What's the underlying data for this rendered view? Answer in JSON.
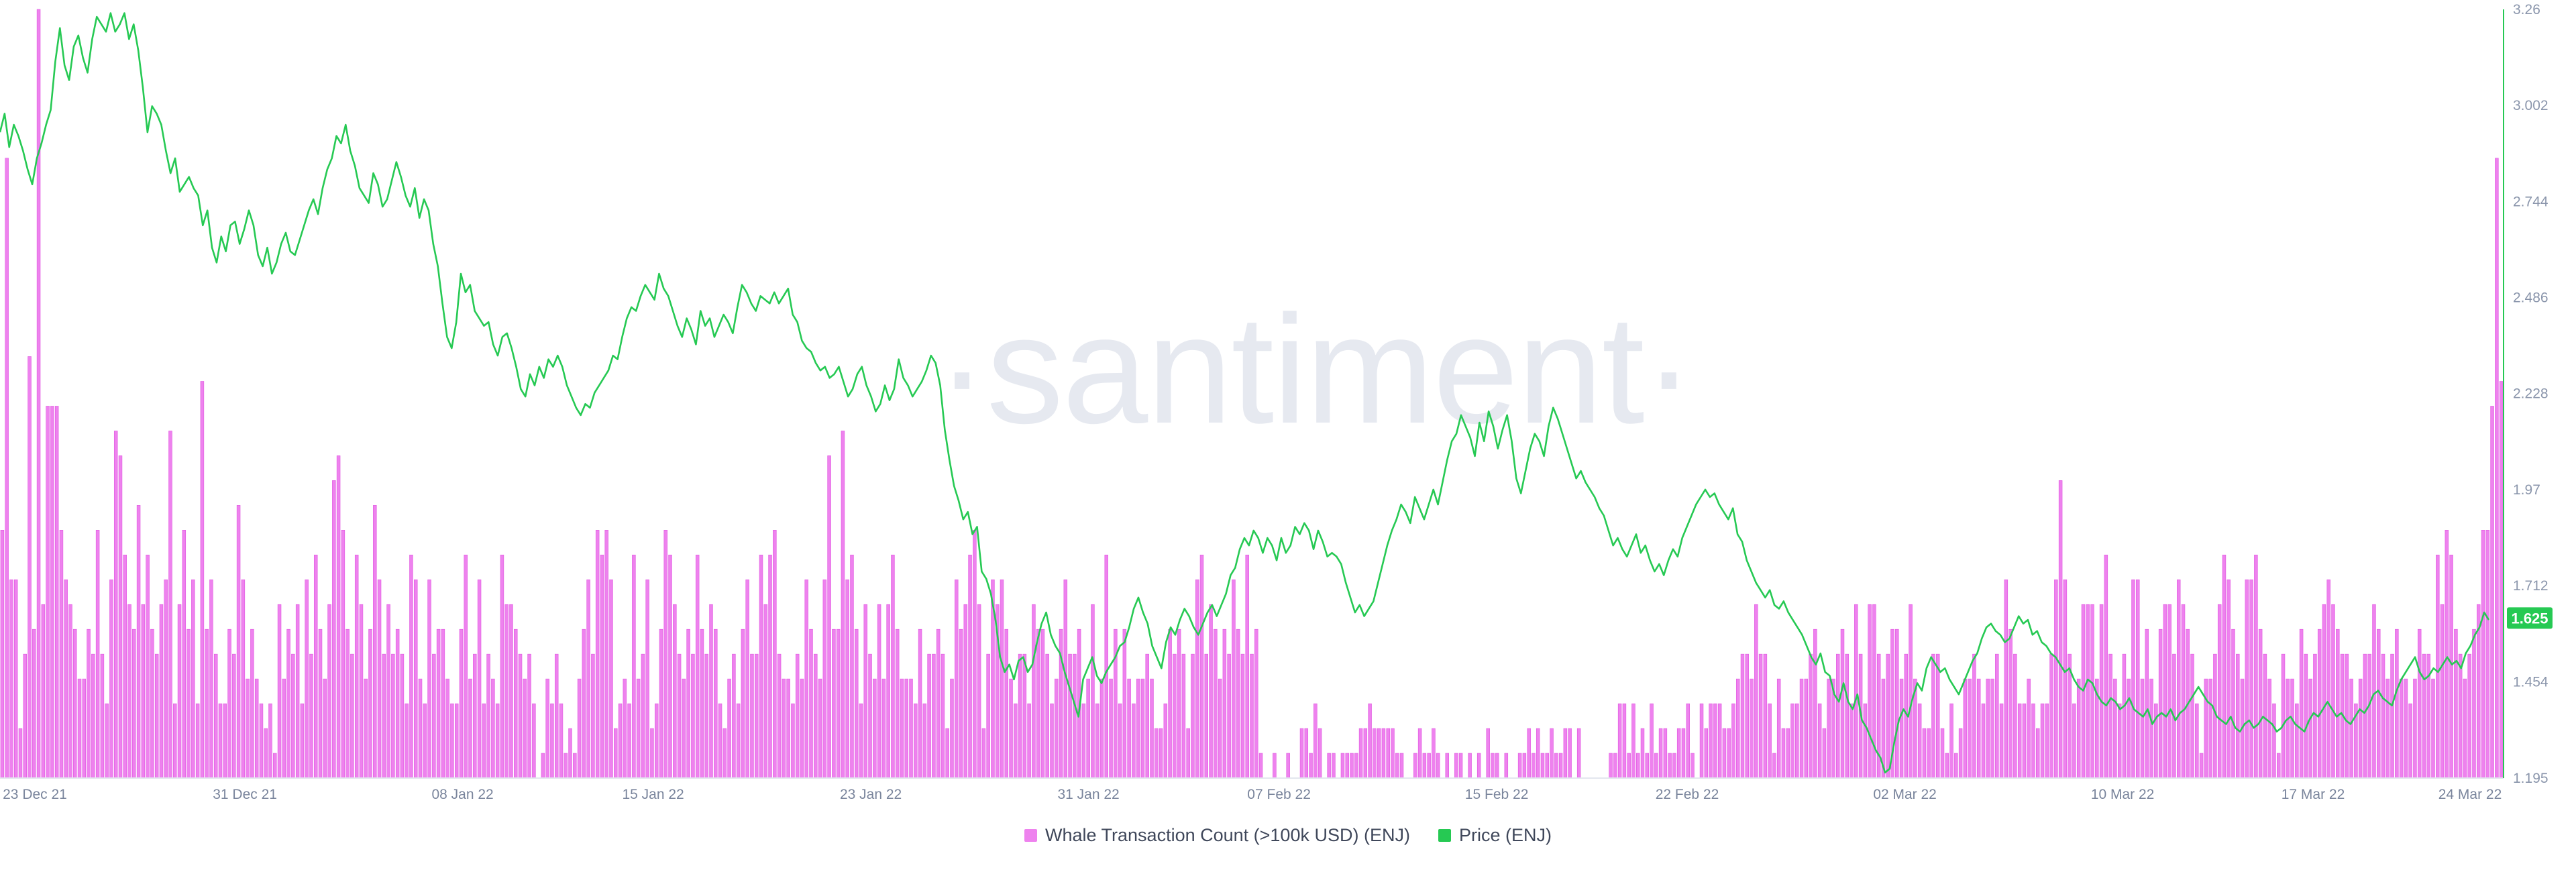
{
  "colors": {
    "whale": "#ee82ee",
    "whale_stroke": "#e056e0",
    "price": "#26c953",
    "axis": "#e3e6ee",
    "price_badge": "#26c953"
  },
  "watermark": "·santiment·",
  "legend": {
    "whale_label": "Whale Transaction Count (>100k USD) (ENJ)",
    "price_label": "Price (ENJ)"
  },
  "price_badge": "1.625",
  "chart_data": {
    "type": "bar+line",
    "x_start": "2021-12-22",
    "x_end": "2022-03-24",
    "x_ticks": [
      "23 Dec 21",
      "31 Dec 21",
      "08 Jan 22",
      "15 Jan 22",
      "23 Jan 22",
      "31 Jan 22",
      "07 Feb 22",
      "15 Feb 22",
      "22 Feb 22",
      "02 Mar 22",
      "10 Mar 22",
      "17 Mar 22",
      "24 Mar 22"
    ],
    "y_right": {
      "label": "",
      "ticks": [
        "1.195",
        "1.454",
        "1.712",
        "1.97",
        "2.228",
        "2.486",
        "2.744",
        "3.002",
        "3.26"
      ],
      "range": [
        1.195,
        3.26
      ]
    },
    "whale_max": 31,
    "series": [
      {
        "name": "Whale Transaction Count (>100k USD) (ENJ)",
        "type": "bar",
        "values": [
          10,
          25,
          8,
          8,
          2,
          5,
          17,
          6,
          31,
          7,
          15,
          15,
          15,
          10,
          8,
          7,
          6,
          4,
          4,
          6,
          5,
          10,
          5,
          3,
          8,
          14,
          13,
          9,
          7,
          6,
          11,
          7,
          9,
          6,
          5,
          7,
          8,
          14,
          3,
          7,
          10,
          6,
          8,
          3,
          16,
          6,
          8,
          5,
          3,
          3,
          6,
          5,
          11,
          8,
          4,
          6,
          4,
          3,
          2,
          3,
          1,
          7,
          4,
          6,
          5,
          7,
          3,
          8,
          5,
          9,
          6,
          4,
          7,
          12,
          13,
          10,
          6,
          5,
          9,
          7,
          4,
          6,
          11,
          8,
          5,
          7,
          5,
          6,
          5,
          3,
          9,
          8,
          4,
          3,
          8,
          5,
          6,
          6,
          4,
          3,
          3,
          6,
          9,
          4,
          5,
          8,
          3,
          5,
          4,
          3,
          9,
          7,
          7,
          6,
          5,
          4,
          5,
          3,
          0,
          1,
          4,
          3,
          5,
          3,
          1,
          2,
          1,
          4,
          6,
          8,
          5,
          10,
          9,
          10,
          8,
          2,
          3,
          4,
          3,
          9,
          4,
          5,
          8,
          2,
          3,
          6,
          10,
          9,
          7,
          5,
          4,
          6,
          5,
          9,
          6,
          5,
          7,
          6,
          3,
          2,
          4,
          5,
          3,
          6,
          8,
          5,
          5,
          9,
          7,
          9,
          10,
          5,
          4,
          4,
          3,
          5,
          4,
          8,
          6,
          5,
          4,
          8,
          13,
          6,
          6,
          14,
          8,
          9,
          6,
          3,
          7,
          5,
          4,
          7,
          4,
          7,
          9,
          6,
          4,
          4,
          4,
          3,
          6,
          3,
          5,
          5,
          6,
          5,
          2,
          4,
          8,
          6,
          7,
          9,
          10,
          7,
          2,
          5,
          8,
          7,
          8,
          6,
          4,
          3,
          5,
          5,
          3,
          7,
          6,
          6,
          5,
          3,
          4,
          6,
          8,
          5,
          5,
          6,
          3,
          4,
          7,
          3,
          4,
          9,
          4,
          6,
          3,
          6,
          4,
          3,
          4,
          4,
          5,
          4,
          2,
          2,
          3,
          6,
          5,
          6,
          5,
          2,
          5,
          8,
          9,
          5,
          7,
          6,
          4,
          6,
          5,
          8,
          6,
          5,
          9,
          5,
          6,
          1,
          0,
          0,
          1,
          0,
          0,
          1,
          0,
          0,
          2,
          2,
          1,
          3,
          2,
          0,
          1,
          1,
          0,
          1,
          1,
          1,
          1,
          2,
          2,
          3,
          2,
          2,
          2,
          2,
          2,
          1,
          1,
          0,
          0,
          1,
          2,
          1,
          1,
          2,
          1,
          0,
          1,
          0,
          1,
          1,
          0,
          1,
          0,
          1,
          0,
          2,
          1,
          1,
          0,
          1,
          0,
          0,
          1,
          1,
          2,
          1,
          2,
          1,
          1,
          2,
          1,
          1,
          2,
          2,
          0,
          2,
          0,
          0,
          0,
          0,
          0,
          0,
          1,
          1,
          3,
          3,
          1,
          3,
          1,
          2,
          1,
          3,
          1,
          2,
          2,
          1,
          1,
          2,
          2,
          3,
          1,
          0,
          3,
          2,
          3,
          3,
          3,
          2,
          2,
          3,
          4,
          5,
          5,
          4,
          7,
          5,
          5,
          3,
          1,
          4,
          2,
          2,
          3,
          3,
          4,
          4,
          5,
          6,
          3,
          2,
          4,
          4,
          5,
          6,
          5,
          3,
          7,
          5,
          3,
          7,
          7,
          5,
          4,
          5,
          6,
          6,
          4,
          5,
          7,
          4,
          3,
          2,
          2,
          5,
          5,
          2,
          1,
          3,
          1,
          2,
          4,
          4,
          5,
          4,
          3,
          4,
          4,
          5,
          3,
          8,
          6,
          5,
          3,
          3,
          4,
          3,
          2,
          3,
          3,
          5,
          8,
          12,
          8,
          5,
          3,
          4,
          7,
          7,
          7,
          4,
          7,
          9,
          5,
          4,
          3,
          5,
          4,
          8,
          8,
          4,
          6,
          4,
          3,
          6,
          7,
          7,
          5,
          8,
          7,
          6,
          5,
          3,
          1,
          4,
          4,
          5,
          7,
          9,
          8,
          6,
          5,
          4,
          8,
          8,
          9,
          6,
          5,
          4,
          3,
          1,
          5,
          4,
          4,
          3,
          6,
          5,
          4,
          5,
          6,
          7,
          8,
          7,
          6,
          5,
          5,
          4,
          3,
          4,
          5,
          5,
          7,
          6,
          5,
          4,
          5,
          6,
          4,
          4,
          3,
          4,
          6,
          5,
          5,
          4,
          9,
          7,
          10,
          9,
          6,
          5,
          4,
          5,
          6,
          7,
          10,
          10,
          15,
          25,
          16
        ]
      },
      {
        "name": "Price (ENJ)",
        "type": "line",
        "values": [
          2.93,
          2.98,
          2.89,
          2.95,
          2.92,
          2.88,
          2.83,
          2.79,
          2.86,
          2.9,
          2.95,
          2.99,
          3.12,
          3.21,
          3.11,
          3.07,
          3.16,
          3.19,
          3.13,
          3.09,
          3.18,
          3.24,
          3.22,
          3.2,
          3.25,
          3.2,
          3.22,
          3.25,
          3.18,
          3.22,
          3.15,
          3.05,
          2.93,
          3.0,
          2.98,
          2.95,
          2.88,
          2.82,
          2.86,
          2.77,
          2.79,
          2.81,
          2.78,
          2.76,
          2.68,
          2.72,
          2.62,
          2.58,
          2.65,
          2.61,
          2.68,
          2.69,
          2.63,
          2.67,
          2.72,
          2.68,
          2.6,
          2.57,
          2.62,
          2.55,
          2.58,
          2.63,
          2.66,
          2.61,
          2.6,
          2.64,
          2.68,
          2.72,
          2.75,
          2.71,
          2.78,
          2.83,
          2.86,
          2.92,
          2.9,
          2.95,
          2.88,
          2.84,
          2.78,
          2.76,
          2.74,
          2.82,
          2.79,
          2.73,
          2.75,
          2.8,
          2.85,
          2.81,
          2.76,
          2.73,
          2.78,
          2.7,
          2.75,
          2.72,
          2.63,
          2.57,
          2.47,
          2.38,
          2.35,
          2.42,
          2.55,
          2.5,
          2.52,
          2.45,
          2.43,
          2.41,
          2.42,
          2.36,
          2.33,
          2.38,
          2.39,
          2.35,
          2.3,
          2.24,
          2.22,
          2.28,
          2.25,
          2.3,
          2.27,
          2.32,
          2.3,
          2.33,
          2.3,
          2.25,
          2.22,
          2.19,
          2.17,
          2.2,
          2.19,
          2.23,
          2.25,
          2.27,
          2.29,
          2.33,
          2.32,
          2.38,
          2.43,
          2.46,
          2.45,
          2.49,
          2.52,
          2.5,
          2.48,
          2.55,
          2.51,
          2.49,
          2.45,
          2.41,
          2.38,
          2.43,
          2.4,
          2.36,
          2.45,
          2.41,
          2.43,
          2.38,
          2.41,
          2.44,
          2.42,
          2.39,
          2.46,
          2.52,
          2.5,
          2.47,
          2.45,
          2.49,
          2.48,
          2.47,
          2.5,
          2.47,
          2.49,
          2.51,
          2.44,
          2.42,
          2.37,
          2.35,
          2.34,
          2.31,
          2.29,
          2.3,
          2.27,
          2.28,
          2.3,
          2.26,
          2.22,
          2.24,
          2.28,
          2.3,
          2.25,
          2.22,
          2.18,
          2.2,
          2.25,
          2.21,
          2.24,
          2.32,
          2.27,
          2.25,
          2.22,
          2.24,
          2.26,
          2.29,
          2.33,
          2.31,
          2.25,
          2.13,
          2.05,
          1.98,
          1.94,
          1.89,
          1.91,
          1.85,
          1.87,
          1.75,
          1.73,
          1.69,
          1.62,
          1.52,
          1.48,
          1.5,
          1.46,
          1.51,
          1.52,
          1.48,
          1.5,
          1.56,
          1.61,
          1.64,
          1.58,
          1.55,
          1.53,
          1.48,
          1.44,
          1.4,
          1.36,
          1.46,
          1.49,
          1.52,
          1.47,
          1.45,
          1.48,
          1.5,
          1.52,
          1.55,
          1.56,
          1.6,
          1.65,
          1.68,
          1.64,
          1.61,
          1.55,
          1.52,
          1.49,
          1.56,
          1.6,
          1.58,
          1.62,
          1.65,
          1.63,
          1.6,
          1.58,
          1.61,
          1.64,
          1.66,
          1.63,
          1.66,
          1.69,
          1.74,
          1.76,
          1.81,
          1.84,
          1.82,
          1.86,
          1.84,
          1.8,
          1.84,
          1.82,
          1.78,
          1.84,
          1.8,
          1.82,
          1.87,
          1.85,
          1.88,
          1.86,
          1.81,
          1.86,
          1.83,
          1.79,
          1.8,
          1.79,
          1.77,
          1.72,
          1.68,
          1.64,
          1.66,
          1.63,
          1.65,
          1.67,
          1.72,
          1.77,
          1.82,
          1.86,
          1.89,
          1.93,
          1.91,
          1.88,
          1.95,
          1.92,
          1.89,
          1.93,
          1.97,
          1.93,
          1.99,
          2.05,
          2.1,
          2.12,
          2.17,
          2.14,
          2.11,
          2.06,
          2.15,
          2.1,
          2.18,
          2.14,
          2.08,
          2.13,
          2.17,
          2.1,
          2.0,
          1.96,
          2.02,
          2.08,
          2.12,
          2.1,
          2.06,
          2.14,
          2.19,
          2.16,
          2.12,
          2.08,
          2.04,
          2.0,
          2.02,
          1.99,
          1.97,
          1.95,
          1.92,
          1.9,
          1.86,
          1.82,
          1.84,
          1.81,
          1.79,
          1.82,
          1.85,
          1.8,
          1.82,
          1.78,
          1.75,
          1.77,
          1.74,
          1.78,
          1.81,
          1.79,
          1.84,
          1.87,
          1.9,
          1.93,
          1.95,
          1.97,
          1.95,
          1.96,
          1.93,
          1.91,
          1.89,
          1.92,
          1.85,
          1.83,
          1.78,
          1.75,
          1.72,
          1.7,
          1.68,
          1.7,
          1.66,
          1.65,
          1.67,
          1.64,
          1.62,
          1.6,
          1.58,
          1.55,
          1.52,
          1.5,
          1.53,
          1.48,
          1.47,
          1.42,
          1.4,
          1.45,
          1.4,
          1.38,
          1.42,
          1.35,
          1.33,
          1.3,
          1.27,
          1.25,
          1.21,
          1.22,
          1.29,
          1.35,
          1.38,
          1.36,
          1.41,
          1.45,
          1.43,
          1.49,
          1.52,
          1.5,
          1.48,
          1.49,
          1.46,
          1.44,
          1.42,
          1.45,
          1.48,
          1.51,
          1.53,
          1.57,
          1.6,
          1.61,
          1.59,
          1.58,
          1.56,
          1.57,
          1.6,
          1.63,
          1.61,
          1.62,
          1.58,
          1.59,
          1.56,
          1.55,
          1.53,
          1.52,
          1.5,
          1.48,
          1.49,
          1.46,
          1.44,
          1.43,
          1.46,
          1.45,
          1.42,
          1.4,
          1.39,
          1.41,
          1.4,
          1.38,
          1.39,
          1.41,
          1.38,
          1.37,
          1.36,
          1.38,
          1.34,
          1.36,
          1.37,
          1.36,
          1.38,
          1.35,
          1.37,
          1.38,
          1.4,
          1.42,
          1.44,
          1.42,
          1.4,
          1.39,
          1.36,
          1.35,
          1.34,
          1.36,
          1.33,
          1.32,
          1.34,
          1.35,
          1.33,
          1.34,
          1.36,
          1.35,
          1.34,
          1.32,
          1.33,
          1.35,
          1.36,
          1.34,
          1.33,
          1.32,
          1.35,
          1.37,
          1.36,
          1.38,
          1.4,
          1.38,
          1.36,
          1.37,
          1.35,
          1.34,
          1.36,
          1.38,
          1.37,
          1.39,
          1.42,
          1.43,
          1.41,
          1.4,
          1.39,
          1.43,
          1.46,
          1.48,
          1.5,
          1.52,
          1.48,
          1.46,
          1.47,
          1.49,
          1.48,
          1.5,
          1.52,
          1.5,
          1.51,
          1.49,
          1.53,
          1.55,
          1.58,
          1.6,
          1.64,
          1.62
        ]
      }
    ]
  }
}
